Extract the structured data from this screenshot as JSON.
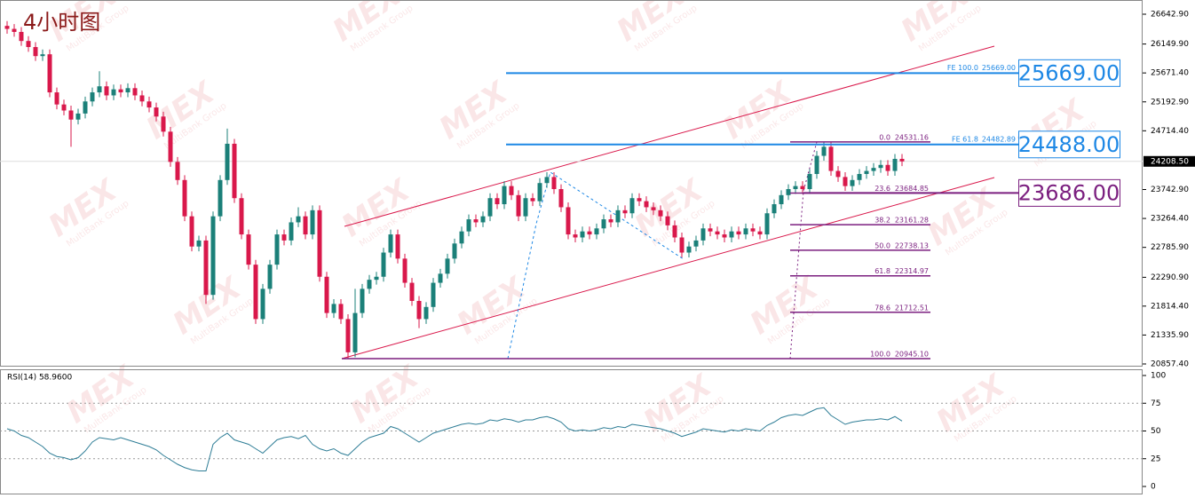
{
  "chart_data": [
    {
      "type": "candlestick",
      "title": "4小时图",
      "open": [
        26450,
        26400,
        26350,
        26200,
        26100,
        25950,
        25980,
        25350,
        25150,
        25050,
        24900,
        25000,
        25200,
        25350,
        25450,
        25300,
        25400,
        25350,
        25420,
        25300,
        25200,
        25100,
        24950,
        24700,
        24200,
        23900,
        23300,
        22800,
        22900,
        22000,
        23300,
        23900,
        24500,
        23600,
        23000,
        22500,
        21600,
        22100,
        22500,
        23000,
        22900,
        23200,
        23300,
        23000,
        23400,
        22300,
        21700,
        21850,
        21600,
        21050,
        21700,
        22100,
        22250,
        22300,
        22700,
        23000,
        22600,
        22200,
        21900,
        21600,
        21800,
        22200,
        22350,
        22600,
        22850,
        23050,
        23250,
        23200,
        23300,
        23600,
        23500,
        23800,
        23650,
        23300,
        23600,
        23550,
        23850,
        23950,
        23750,
        23450,
        23000,
        22950,
        23050,
        23000,
        23100,
        23250,
        23200,
        23400,
        23350,
        23600,
        23550,
        23450,
        23400,
        23300,
        23150,
        22950,
        22700,
        22800,
        22900,
        23100,
        23050,
        23000,
        22950,
        23050,
        23000,
        23100,
        23050,
        23000,
        23350,
        23500,
        23650,
        23750,
        23800,
        23750,
        24000,
        24300,
        24450,
        24050,
        23950,
        23800,
        23900,
        24000,
        24050,
        24100,
        24150,
        24050,
        24250
      ],
      "high": [
        26530,
        26480,
        26430,
        26280,
        26180,
        26060,
        26060,
        25430,
        25230,
        25130,
        25080,
        25280,
        25430,
        25700,
        25530,
        25480,
        25480,
        25500,
        25500,
        25380,
        25280,
        25180,
        25030,
        24780,
        24280,
        23980,
        23380,
        22980,
        22980,
        23380,
        23980,
        24750,
        24580,
        23680,
        23080,
        22580,
        22180,
        22580,
        23080,
        23080,
        23280,
        23450,
        23380,
        23480,
        23480,
        22380,
        21930,
        21930,
        21680,
        22100,
        22180,
        22330,
        22380,
        22780,
        23080,
        23080,
        22680,
        22280,
        21980,
        21880,
        22280,
        22430,
        22680,
        22930,
        23130,
        23330,
        23330,
        23380,
        23680,
        23680,
        23880,
        23880,
        23730,
        23680,
        23680,
        23930,
        24030,
        24030,
        23830,
        23530,
        23080,
        23130,
        23130,
        23180,
        23330,
        23330,
        23480,
        23480,
        23680,
        23680,
        23630,
        23530,
        23480,
        23380,
        23230,
        23030,
        22880,
        22980,
        23180,
        23180,
        23130,
        23080,
        23130,
        23130,
        23180,
        23180,
        23130,
        23430,
        23580,
        23730,
        23830,
        23880,
        23880,
        24080,
        24380,
        24531.16,
        24530,
        24130,
        24030,
        23980,
        24080,
        24130,
        24180,
        24230,
        24230,
        24330,
        24330
      ],
      "low": [
        26320,
        26270,
        26120,
        26020,
        25870,
        25870,
        25270,
        25070,
        24970,
        24450,
        24820,
        24920,
        25120,
        25270,
        25220,
        25220,
        25270,
        25270,
        25220,
        25120,
        25020,
        24870,
        24620,
        24120,
        23820,
        23220,
        22720,
        22720,
        21850,
        21920,
        23220,
        23820,
        23520,
        22920,
        22420,
        21520,
        21520,
        22020,
        22420,
        22820,
        22820,
        23120,
        22920,
        22920,
        22220,
        21620,
        21620,
        21520,
        20945.1,
        20970,
        21620,
        22020,
        22170,
        22220,
        22620,
        22520,
        22120,
        21820,
        21450,
        21520,
        21720,
        22120,
        22270,
        22520,
        22770,
        22970,
        23120,
        23120,
        23220,
        23420,
        23420,
        23570,
        23220,
        23220,
        23470,
        23470,
        23770,
        23670,
        23370,
        22920,
        22870,
        22870,
        22920,
        22920,
        23020,
        23120,
        23120,
        23270,
        23270,
        23470,
        23370,
        23320,
        23220,
        23070,
        22870,
        22620,
        22620,
        22720,
        22820,
        22970,
        22920,
        22870,
        22870,
        22920,
        22920,
        22970,
        22920,
        22920,
        23270,
        23420,
        23570,
        23670,
        23670,
        23670,
        23920,
        24220,
        23970,
        23870,
        23720,
        23720,
        23820,
        23920,
        23970,
        24020,
        23970,
        23970,
        24130
      ],
      "close": [
        26400,
        26350,
        26200,
        26100,
        25950,
        25980,
        25350,
        25150,
        25050,
        24900,
        25000,
        25200,
        25350,
        25450,
        25300,
        25400,
        25350,
        25420,
        25300,
        25200,
        25100,
        24950,
        24700,
        24200,
        23900,
        23300,
        22800,
        22900,
        22000,
        23300,
        23900,
        24500,
        23600,
        23000,
        22500,
        21600,
        22100,
        22500,
        23000,
        22900,
        23200,
        23300,
        23000,
        23400,
        22300,
        21700,
        21850,
        21600,
        21050,
        21700,
        22100,
        22250,
        22300,
        22700,
        23000,
        22600,
        22200,
        21900,
        21600,
        21800,
        22200,
        22350,
        22600,
        22850,
        23050,
        23250,
        23200,
        23300,
        23600,
        23500,
        23800,
        23650,
        23300,
        23600,
        23550,
        23850,
        23950,
        23750,
        23450,
        23000,
        22950,
        23050,
        23000,
        23100,
        23250,
        23200,
        23400,
        23350,
        23600,
        23550,
        23450,
        23400,
        23300,
        23150,
        22950,
        22700,
        22800,
        22900,
        23100,
        23050,
        23000,
        22950,
        23050,
        23000,
        23100,
        23050,
        23000,
        23350,
        23500,
        23650,
        23750,
        23800,
        23750,
        24000,
        24300,
        24450,
        24050,
        23950,
        23800,
        23900,
        24000,
        24050,
        24100,
        24150,
        24050,
        24250,
        24208.5
      ],
      "up_color": "#1b8079",
      "down_color": "#d9184b",
      "ylim": [
        20828,
        26878
      ],
      "yticks": [
        {
          "value": 26642.9,
          "label": "26642.90"
        },
        {
          "value": 26149.9,
          "label": "26149.90"
        },
        {
          "value": 25671.4,
          "label": "25671.40"
        },
        {
          "value": 25192.9,
          "label": "25192.90"
        },
        {
          "value": 24714.4,
          "label": "24714.40"
        },
        {
          "value": 23742.9,
          "label": "23742.90"
        },
        {
          "value": 23264.4,
          "label": "23264.40"
        },
        {
          "value": 22785.9,
          "label": "22785.90"
        },
        {
          "value": 22290.9,
          "label": "22290.90"
        },
        {
          "value": 21814.4,
          "label": "21814.40"
        },
        {
          "value": 21335.9,
          "label": "21335.90"
        },
        {
          "value": 20857.4,
          "label": "20857.40"
        }
      ],
      "last_price": {
        "value": 24208.5,
        "label": "24208.50"
      },
      "price_boxes": [
        {
          "value": 25669,
          "label": "25669.00",
          "color": "#1e88e5"
        },
        {
          "value": 24488,
          "label": "24488.00",
          "color": "#1e88e5"
        },
        {
          "value": 23686,
          "label": "23686.00",
          "color": "#7b1f7f"
        }
      ],
      "fe_levels": [
        {
          "ratio": "FE 100.0",
          "price": {
            "value": 25669,
            "label": "25669.00"
          }
        },
        {
          "ratio": "FE 61.8",
          "price": {
            "value": 24482.89,
            "label": "24482.89"
          }
        }
      ],
      "fe_color": "#1e88e5",
      "fib_levels": [
        {
          "ratio": "0.0",
          "price": {
            "value": 24531.16,
            "label": "24531.16"
          }
        },
        {
          "ratio": "23.6",
          "price": {
            "value": 23684.85,
            "label": "23684.85"
          }
        },
        {
          "ratio": "38.2",
          "price": {
            "value": 23161.28,
            "label": "23161.28"
          }
        },
        {
          "ratio": "50.0",
          "price": {
            "value": 22738.13,
            "label": "22738.13"
          }
        },
        {
          "ratio": "61.8",
          "price": {
            "value": 22314.97,
            "label": "22314.97"
          }
        },
        {
          "ratio": "78.6",
          "price": {
            "value": 21712.51,
            "label": "21712.51"
          }
        },
        {
          "ratio": "100.0",
          "price": {
            "value": 20945.1,
            "label": "20945.10"
          }
        }
      ],
      "fib_color": "#7b1f7f",
      "watermark": {
        "logo": "MEX",
        "text": "MultiBank Group"
      }
    },
    {
      "type": "line",
      "title": "RSI(14) 58.9600",
      "values": [
        52,
        50,
        46,
        44,
        40,
        36,
        30,
        27,
        26,
        24,
        26,
        32,
        40,
        44,
        43,
        42,
        44,
        42,
        40,
        38,
        36,
        33,
        28,
        24,
        20,
        17,
        15,
        14,
        14,
        38,
        44,
        48,
        42,
        40,
        38,
        34,
        30,
        36,
        42,
        44,
        45,
        43,
        46,
        38,
        34,
        32,
        34,
        30,
        28,
        34,
        40,
        44,
        46,
        48,
        54,
        52,
        48,
        44,
        40,
        44,
        48,
        50,
        52,
        54,
        56,
        57,
        56,
        57,
        60,
        59,
        61,
        60,
        58,
        60,
        60,
        62,
        63,
        61,
        58,
        52,
        50,
        51,
        50,
        51,
        53,
        52,
        54,
        53,
        56,
        55,
        54,
        53,
        52,
        50,
        48,
        45,
        47,
        49,
        52,
        51,
        50,
        49,
        51,
        50,
        52,
        51,
        50,
        55,
        58,
        62,
        64,
        65,
        64,
        67,
        70,
        71,
        64,
        60,
        56,
        58,
        59,
        60,
        60,
        61,
        60,
        63,
        58.96
      ],
      "color": "#2e7d96",
      "ylim": [
        -6.4,
        105.6
      ],
      "yticks": [
        0,
        25,
        50,
        75,
        100
      ],
      "grid_levels": [
        25,
        50,
        75
      ]
    }
  ]
}
